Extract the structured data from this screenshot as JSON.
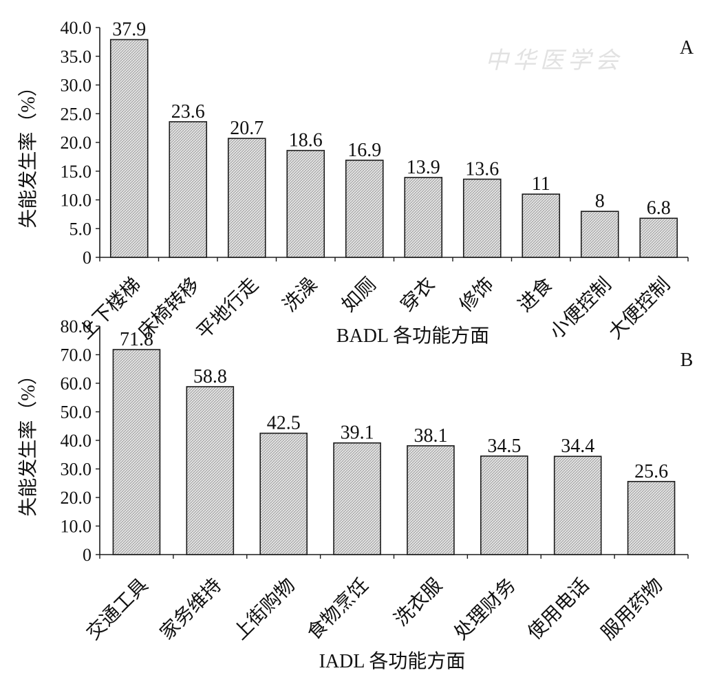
{
  "watermark": {
    "text": "中华医学会"
  },
  "colors": {
    "bar_fill": "#d9d9d9",
    "bar_stroke": "#1a1a1a",
    "axis": "#1a1a1a"
  },
  "chart_data": [
    {
      "type": "bar",
      "panel_label": "A",
      "categories": [
        "上下楼梯",
        "床椅转移",
        "平地行走",
        "洗澡",
        "如厕",
        "穿衣",
        "修饰",
        "进食",
        "小便控制",
        "大便控制"
      ],
      "values": [
        37.9,
        23.6,
        20.7,
        18.6,
        16.9,
        13.9,
        13.6,
        11,
        8,
        6.8
      ],
      "data_labels": [
        "37.9",
        "23.6",
        "20.7",
        "18.6",
        "16.9",
        "13.9",
        "13.6",
        "11",
        "8",
        "6.8"
      ],
      "xlabel": "BADL 各功能方面",
      "ylabel": "失能发生率（%）",
      "ylim": [
        0,
        40
      ],
      "yticks": [
        "0",
        "5.0",
        "10.0",
        "15.0",
        "20.0",
        "25.0",
        "30.0",
        "35.0",
        "40.0"
      ],
      "grid": false,
      "legend": "none"
    },
    {
      "type": "bar",
      "panel_label": "B",
      "categories": [
        "交通工具",
        "家务维持",
        "上街购物",
        "食物烹饪",
        "洗衣服",
        "处理财务",
        "使用电话",
        "服用药物"
      ],
      "values": [
        71.8,
        58.8,
        42.5,
        39.1,
        38.1,
        34.5,
        34.4,
        25.6
      ],
      "data_labels": [
        "71.8",
        "58.8",
        "42.5",
        "39.1",
        "38.1",
        "34.5",
        "34.4",
        "25.6"
      ],
      "xlabel": "IADL 各功能方面",
      "ylabel": "失能发生率（%）",
      "ylim": [
        0,
        80
      ],
      "yticks": [
        "0",
        "10.0",
        "20.0",
        "30.0",
        "40.0",
        "50.0",
        "60.0",
        "70.0",
        "80.0"
      ],
      "grid": false,
      "legend": "none"
    }
  ]
}
